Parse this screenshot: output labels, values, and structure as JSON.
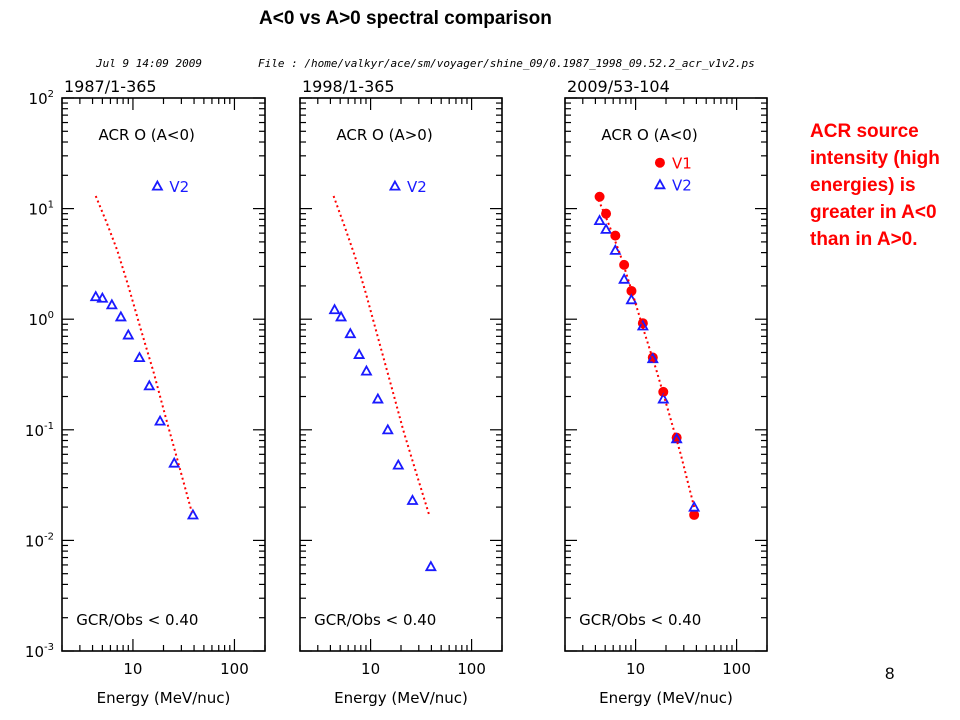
{
  "slide": {
    "title": "A<0 vs A>0 spectral comparison",
    "header_date": "Jul  9 14:09 2009",
    "header_file": "File : /home/valkyr/ace/sm/voyager/shine_09/0.1987_1998_09.52.2_acr_v1v2.ps",
    "annotation": "ACR source intensity (high energies) is greater in A<0 than in A>0.",
    "page_number": "8"
  },
  "colors": {
    "v2": "#1a1aff",
    "v1": "#ff0000",
    "model": "#ff0000",
    "axis": "#000000",
    "annotation": "#ff0000"
  },
  "chart_data": [
    {
      "type": "scatter",
      "title": "1987/1-365",
      "species_label": "ACR O (A<0)",
      "footer_label": "GCR/Obs < 0.40",
      "xlabel": "Energy (MeV/nuc)",
      "ylabel": "",
      "xscale": "log",
      "yscale": "log",
      "xlim": [
        2,
        200
      ],
      "ylim": [
        0.001,
        100
      ],
      "x_ticks": [
        "10",
        "100"
      ],
      "y_ticks": [
        "10^-3",
        "10^-2",
        "10^-1",
        "10^0",
        "10^1",
        "10^2"
      ],
      "legend": [
        "V2"
      ],
      "series": [
        {
          "name": "V2",
          "marker": "triangle",
          "x": [
            4.3,
            5.0,
            6.2,
            7.6,
            9.0,
            11.6,
            14.5,
            18.5,
            25.5,
            39.0
          ],
          "y": [
            1.6,
            1.55,
            1.35,
            1.05,
            0.72,
            0.45,
            0.25,
            0.12,
            0.05,
            0.017
          ]
        },
        {
          "name": "model",
          "style": "dotted",
          "x": [
            4.3,
            5.5,
            7.0,
            9.0,
            12.0,
            16.0,
            21.0,
            28.0,
            38.0
          ],
          "y": [
            13.0,
            7.5,
            4.2,
            2.0,
            0.8,
            0.33,
            0.13,
            0.05,
            0.018
          ]
        }
      ]
    },
    {
      "type": "scatter",
      "title": "1998/1-365",
      "species_label": "ACR O (A>0)",
      "footer_label": "GCR/Obs < 0.40",
      "xlabel": "Energy (MeV/nuc)",
      "ylabel": "",
      "xscale": "log",
      "yscale": "log",
      "xlim": [
        2,
        200
      ],
      "ylim": [
        0.001,
        100
      ],
      "x_ticks": [
        "10",
        "100"
      ],
      "y_ticks": [],
      "legend": [
        "V2"
      ],
      "series": [
        {
          "name": "V2",
          "marker": "triangle",
          "x": [
            4.4,
            5.1,
            6.3,
            7.7,
            9.1,
            11.8,
            14.8,
            18.8,
            26.0,
            39.5
          ],
          "y": [
            1.22,
            1.05,
            0.74,
            0.48,
            0.34,
            0.19,
            0.1,
            0.048,
            0.023,
            0.0058
          ]
        },
        {
          "name": "model",
          "style": "dotted",
          "x": [
            4.3,
            5.5,
            7.0,
            9.0,
            12.0,
            16.0,
            21.0,
            28.0,
            38.0
          ],
          "y": [
            13.0,
            7.0,
            3.7,
            1.7,
            0.65,
            0.25,
            0.1,
            0.042,
            0.017
          ]
        }
      ]
    },
    {
      "type": "scatter",
      "title": "2009/53-104",
      "species_label": "ACR O (A<0)",
      "footer_label": "GCR/Obs < 0.40",
      "xlabel": "Energy (MeV/nuc)",
      "ylabel": "",
      "xscale": "log",
      "yscale": "log",
      "xlim": [
        2,
        200
      ],
      "ylim": [
        0.001,
        100
      ],
      "x_ticks": [
        "10",
        "100"
      ],
      "y_ticks": [],
      "legend": [
        "V1",
        "V2"
      ],
      "series": [
        {
          "name": "V1",
          "marker": "circle",
          "x": [
            4.4,
            5.1,
            6.3,
            7.7,
            9.1,
            11.8,
            14.8,
            18.8,
            25.5,
            38.0
          ],
          "y": [
            12.8,
            9.0,
            5.7,
            3.1,
            1.8,
            0.92,
            0.45,
            0.22,
            0.085,
            0.017
          ]
        },
        {
          "name": "V2",
          "marker": "triangle",
          "x": [
            4.4,
            5.1,
            6.3,
            7.7,
            9.1,
            11.8,
            14.8,
            18.8,
            25.5,
            38.0
          ],
          "y": [
            7.8,
            6.5,
            4.2,
            2.3,
            1.5,
            0.87,
            0.44,
            0.19,
            0.083,
            0.02
          ]
        },
        {
          "name": "model",
          "style": "dotted",
          "x": [
            4.3,
            5.5,
            7.0,
            9.0,
            12.0,
            16.0,
            21.0,
            28.0,
            38.0
          ],
          "y": [
            12.0,
            7.0,
            3.9,
            1.9,
            0.8,
            0.35,
            0.15,
            0.06,
            0.02
          ]
        }
      ]
    }
  ]
}
